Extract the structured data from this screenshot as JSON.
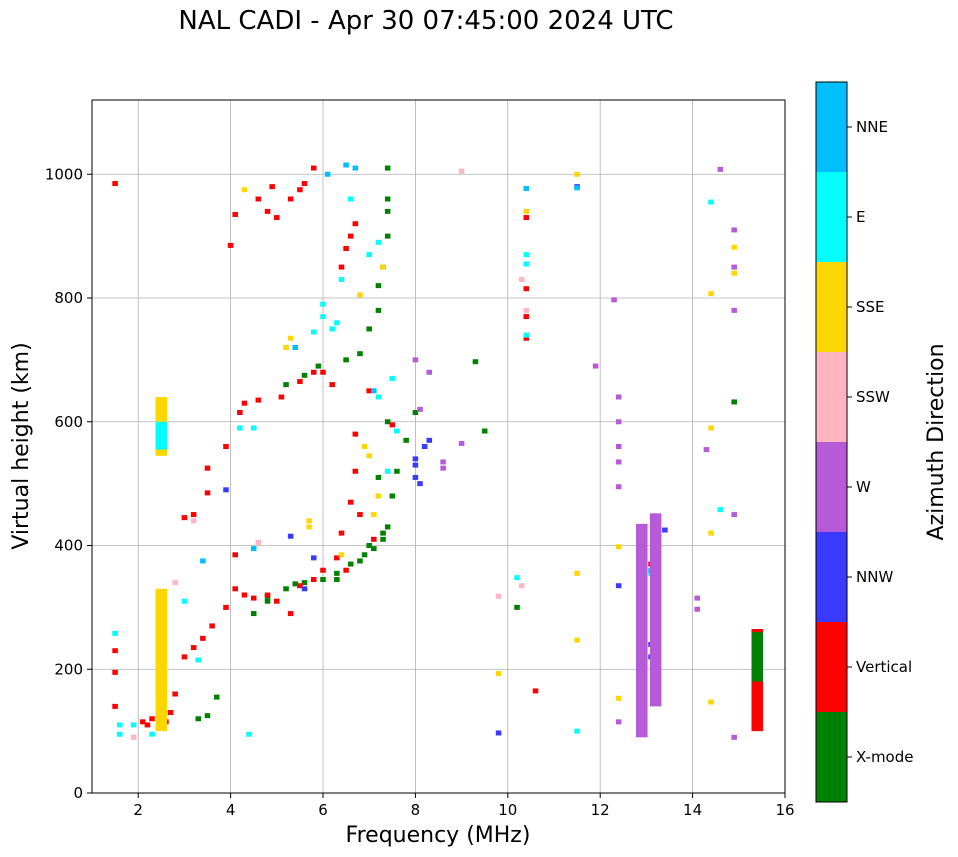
{
  "chart_data": {
    "type": "scatter",
    "title": "NAL CADI - Apr 30 07:45:00 2024 UTC",
    "xlabel": "Frequency (MHz)",
    "ylabel": "Virtual height (km)",
    "xlim": [
      1,
      16
    ],
    "ylim": [
      0,
      1120
    ],
    "xticks": [
      2,
      4,
      6,
      8,
      10,
      12,
      14,
      16
    ],
    "yticks": [
      0,
      200,
      400,
      600,
      800,
      1000
    ],
    "grid": true,
    "colorbar": {
      "label": "Azimuth Direction",
      "categories": [
        "X-mode",
        "Vertical",
        "NNW",
        "W",
        "SSW",
        "SSE",
        "E",
        "NNE"
      ],
      "colors": [
        "#008000",
        "#ff0000",
        "#3a3aff",
        "#b65ad7",
        "#ffb6c1",
        "#ffd700",
        "#00ffff",
        "#00bfff"
      ]
    },
    "points": {
      "X-mode": [
        [
          3.3,
          120
        ],
        [
          3.5,
          125
        ],
        [
          3.7,
          155
        ],
        [
          4.5,
          290
        ],
        [
          4.8,
          310
        ],
        [
          5.2,
          330
        ],
        [
          5.6,
          340
        ],
        [
          6,
          345
        ],
        [
          6.3,
          355
        ],
        [
          6.6,
          370
        ],
        [
          6.9,
          385
        ],
        [
          7.1,
          395
        ],
        [
          7.3,
          410
        ],
        [
          7.4,
          430
        ],
        [
          7.2,
          510
        ],
        [
          7.4,
          600
        ],
        [
          7.5,
          480
        ],
        [
          7.6,
          520
        ],
        [
          7.8,
          570
        ],
        [
          8,
          615
        ],
        [
          9.3,
          697
        ],
        [
          9.5,
          585
        ],
        [
          10.2,
          300
        ],
        [
          6.5,
          700
        ],
        [
          6.8,
          710
        ],
        [
          7,
          750
        ],
        [
          7.2,
          780
        ],
        [
          7.3,
          850
        ],
        [
          7.4,
          900
        ],
        [
          7.4,
          960
        ],
        [
          7.4,
          1010
        ],
        [
          5.2,
          660
        ],
        [
          5.6,
          675
        ],
        [
          5.9,
          690
        ],
        [
          14.9,
          632
        ],
        [
          6.3,
          345
        ],
        [
          4.8,
          318
        ],
        [
          7,
          400
        ],
        [
          6.8,
          375
        ],
        [
          5.4,
          338
        ],
        [
          7.3,
          420
        ],
        [
          7.4,
          940
        ],
        [
          7.2,
          820
        ]
      ],
      "Vertical": [
        [
          1.5,
          985
        ],
        [
          1.5,
          230
        ],
        [
          1.5,
          195
        ],
        [
          1.5,
          140
        ],
        [
          2.1,
          115
        ],
        [
          2.3,
          120
        ],
        [
          2.2,
          110
        ],
        [
          2.6,
          115
        ],
        [
          2.7,
          130
        ],
        [
          2.8,
          160
        ],
        [
          3,
          220
        ],
        [
          3.2,
          235
        ],
        [
          3.4,
          250
        ],
        [
          3.6,
          270
        ],
        [
          3.9,
          300
        ],
        [
          4.1,
          330
        ],
        [
          4.3,
          320
        ],
        [
          4.5,
          315
        ],
        [
          4.8,
          320
        ],
        [
          5,
          310
        ],
        [
          5.3,
          290
        ],
        [
          5.5,
          335
        ],
        [
          5.8,
          345
        ],
        [
          6,
          360
        ],
        [
          6.3,
          380
        ],
        [
          6.4,
          420
        ],
        [
          6.6,
          470
        ],
        [
          6.7,
          520
        ],
        [
          6.7,
          580
        ],
        [
          6.6,
          900
        ],
        [
          6.7,
          920
        ],
        [
          6.5,
          880
        ],
        [
          6.4,
          850
        ],
        [
          6.2,
          660
        ],
        [
          6,
          680
        ],
        [
          5.8,
          680
        ],
        [
          5.5,
          665
        ],
        [
          5.1,
          640
        ],
        [
          4.6,
          635
        ],
        [
          4.3,
          630
        ],
        [
          4.2,
          615
        ],
        [
          3.9,
          560
        ],
        [
          3.5,
          485
        ],
        [
          3.5,
          525
        ],
        [
          3.2,
          450
        ],
        [
          3.0,
          445
        ],
        [
          4,
          885
        ],
        [
          4.1,
          935
        ],
        [
          4.8,
          940
        ],
        [
          5,
          930
        ],
        [
          5.3,
          960
        ],
        [
          5.5,
          975
        ],
        [
          5.8,
          1010
        ],
        [
          5.6,
          985
        ],
        [
          4.6,
          960
        ],
        [
          4.9,
          980
        ],
        [
          10.4,
          930
        ],
        [
          10.4,
          815
        ],
        [
          10.4,
          770
        ],
        [
          10.4,
          735
        ],
        [
          10.6,
          165
        ],
        [
          12.9,
          320
        ],
        [
          13.1,
          370
        ],
        [
          13.2,
          310
        ],
        [
          7,
          650
        ],
        [
          7.1,
          410
        ],
        [
          4.1,
          385
        ],
        [
          6.8,
          450
        ],
        [
          7.5,
          595
        ],
        [
          6.5,
          360
        ]
      ],
      "NNW": [
        [
          5.3,
          415
        ],
        [
          5.8,
          380
        ],
        [
          8,
          510
        ],
        [
          8.2,
          560
        ],
        [
          8.3,
          570
        ],
        [
          8.1,
          500
        ],
        [
          9.8,
          97
        ],
        [
          11.5,
          980
        ],
        [
          12.4,
          335
        ],
        [
          13.4,
          425
        ],
        [
          13.1,
          240
        ],
        [
          13.2,
          265
        ],
        [
          13.1,
          220
        ],
        [
          8,
          540
        ],
        [
          8,
          530
        ],
        [
          5.6,
          330
        ],
        [
          3.9,
          490
        ]
      ],
      "W": [
        [
          8,
          700
        ],
        [
          8.1,
          620
        ],
        [
          8.3,
          680
        ],
        [
          8.6,
          535
        ],
        [
          8.6,
          525
        ],
        [
          9,
          565
        ],
        [
          11.9,
          690
        ],
        [
          12.4,
          640
        ],
        [
          12.4,
          600
        ],
        [
          12.4,
          560
        ],
        [
          12.4,
          535
        ],
        [
          12.4,
          495
        ],
        [
          12.4,
          115
        ],
        [
          12.3,
          797
        ],
        [
          14.1,
          315
        ],
        [
          14.1,
          297
        ],
        [
          14.3,
          555
        ],
        [
          14.6,
          1008
        ],
        [
          14.9,
          910
        ],
        [
          14.9,
          850
        ],
        [
          14.9,
          780
        ],
        [
          14.9,
          450
        ],
        [
          14.9,
          90
        ]
      ],
      "SSW": [
        [
          1.9,
          90
        ],
        [
          2.8,
          340
        ],
        [
          3.2,
          440
        ],
        [
          4.6,
          405
        ],
        [
          9,
          1005
        ],
        [
          9.8,
          318
        ],
        [
          10.3,
          335
        ],
        [
          10.3,
          830
        ],
        [
          10.4,
          780
        ]
      ],
      "SSE": [
        [
          4.3,
          975
        ],
        [
          5.2,
          720
        ],
        [
          5.3,
          735
        ],
        [
          5.7,
          430
        ],
        [
          5.7,
          440
        ],
        [
          6.4,
          385
        ],
        [
          6.9,
          560
        ],
        [
          7.1,
          450
        ],
        [
          7,
          545
        ],
        [
          7.2,
          480
        ],
        [
          7.3,
          850
        ],
        [
          9.8,
          193
        ],
        [
          10.4,
          940
        ],
        [
          11.5,
          1000
        ],
        [
          11.5,
          355
        ],
        [
          11.5,
          247
        ],
        [
          12.4,
          398
        ],
        [
          12.4,
          153
        ],
        [
          14.4,
          807
        ],
        [
          14.4,
          590
        ],
        [
          14.4,
          420
        ],
        [
          14.4,
          147
        ],
        [
          14.9,
          882
        ],
        [
          14.9,
          840
        ],
        [
          6.8,
          805
        ]
      ],
      "E": [
        [
          1.5,
          258
        ],
        [
          1.6,
          95
        ],
        [
          1.6,
          110
        ],
        [
          1.9,
          110
        ],
        [
          2.3,
          95
        ],
        [
          2.5,
          230
        ],
        [
          3.0,
          310
        ],
        [
          3.3,
          215
        ],
        [
          4.4,
          95
        ],
        [
          4.2,
          590
        ],
        [
          4.5,
          590
        ],
        [
          5.8,
          745
        ],
        [
          6,
          790
        ],
        [
          6.4,
          830
        ],
        [
          6.6,
          960
        ],
        [
          7,
          870
        ],
        [
          7.2,
          890
        ],
        [
          7.5,
          670
        ],
        [
          7.6,
          585
        ],
        [
          7.4,
          520
        ],
        [
          7.2,
          640
        ],
        [
          10.2,
          348
        ],
        [
          10.4,
          740
        ],
        [
          10.4,
          855
        ],
        [
          10.4,
          870
        ],
        [
          11.5,
          100
        ],
        [
          14.4,
          955
        ],
        [
          14.6,
          458
        ],
        [
          13.1,
          355
        ],
        [
          6.2,
          750
        ],
        [
          6,
          770
        ],
        [
          6.3,
          760
        ]
      ],
      "NNE": [
        [
          3.4,
          375
        ],
        [
          4.5,
          395
        ],
        [
          5.4,
          720
        ],
        [
          6.1,
          1000
        ],
        [
          6.5,
          1015
        ],
        [
          6.7,
          1010
        ],
        [
          10.4,
          977
        ],
        [
          11.5,
          978
        ],
        [
          13.1,
          360
        ],
        [
          7.1,
          650
        ]
      ]
    },
    "bars": [
      [
        2.5,
        100,
        330,
        "SSE"
      ],
      [
        2.5,
        545,
        640,
        "SSE"
      ],
      [
        2.5,
        555,
        600,
        "E"
      ],
      [
        12.9,
        90,
        435,
        "W"
      ],
      [
        13.2,
        140,
        452,
        "W"
      ],
      [
        15.4,
        100,
        265,
        "Vertical"
      ],
      [
        15.4,
        180,
        260,
        "X-mode"
      ]
    ]
  }
}
